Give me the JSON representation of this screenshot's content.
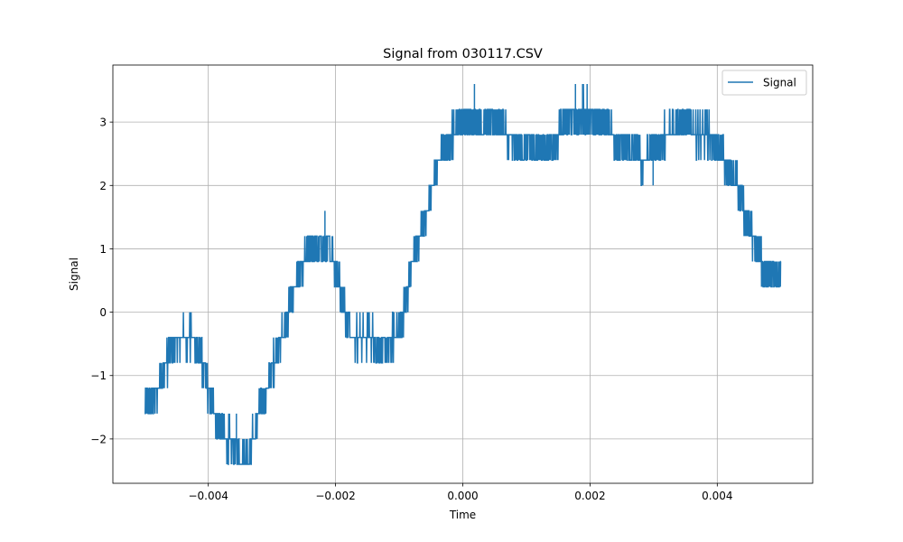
{
  "chart_data": {
    "type": "line",
    "title": "Signal from 030117.CSV",
    "xlabel": "Time",
    "ylabel": "Signal",
    "xlim": [
      -0.0055,
      0.0055
    ],
    "ylim": [
      -2.7,
      3.9
    ],
    "x_ticks": [
      -0.004,
      -0.002,
      0.0,
      0.002,
      0.004
    ],
    "x_tick_labels": [
      "−0.004",
      "−0.002",
      "0.000",
      "0.002",
      "0.004"
    ],
    "y_ticks": [
      -2,
      -1,
      0,
      1,
      2,
      3
    ],
    "y_tick_labels": [
      "−2",
      "−1",
      "0",
      "1",
      "2",
      "3"
    ],
    "grid": true,
    "legend_position": "top-right",
    "quantization_step": 0.4,
    "series": [
      {
        "name": "Signal",
        "color": "#1f77b4",
        "trend": [
          [
            -0.005,
            -1.5
          ],
          [
            -0.0049,
            -1.4
          ],
          [
            -0.0048,
            -1.2
          ],
          [
            -0.0047,
            -1.0
          ],
          [
            -0.0046,
            -0.6
          ],
          [
            -0.0045,
            -0.45
          ],
          [
            -0.0044,
            -0.4
          ],
          [
            -0.0043,
            -0.4
          ],
          [
            -0.0042,
            -0.5
          ],
          [
            -0.0041,
            -0.8
          ],
          [
            -0.004,
            -1.2
          ],
          [
            -0.0039,
            -1.6
          ],
          [
            -0.0038,
            -1.9
          ],
          [
            -0.0037,
            -2.0
          ],
          [
            -0.0036,
            -2.1
          ],
          [
            -0.0035,
            -2.3
          ],
          [
            -0.0034,
            -2.3
          ],
          [
            -0.0033,
            -2.0
          ],
          [
            -0.0032,
            -1.6
          ],
          [
            -0.0031,
            -1.3
          ],
          [
            -0.003,
            -0.9
          ],
          [
            -0.0029,
            -0.5
          ],
          [
            -0.0028,
            -0.3
          ],
          [
            -0.0027,
            0.2
          ],
          [
            -0.0026,
            0.5
          ],
          [
            -0.0025,
            0.8
          ],
          [
            -0.0024,
            1.0
          ],
          [
            -0.0023,
            1.0
          ],
          [
            -0.0022,
            1.0
          ],
          [
            -0.0021,
            1.0
          ],
          [
            -0.002,
            0.7
          ],
          [
            -0.0019,
            0.2
          ],
          [
            -0.0018,
            -0.2
          ],
          [
            -0.0017,
            -0.4
          ],
          [
            -0.0016,
            -0.4
          ],
          [
            -0.0015,
            -0.4
          ],
          [
            -0.0014,
            -0.4
          ],
          [
            -0.0013,
            -0.6
          ],
          [
            -0.0012,
            -0.6
          ],
          [
            -0.0011,
            -0.4
          ],
          [
            -0.001,
            -0.3
          ],
          [
            -0.0009,
            0.1
          ],
          [
            -0.0008,
            0.7
          ],
          [
            -0.0007,
            1.1
          ],
          [
            -0.0006,
            1.5
          ],
          [
            -0.0005,
            1.9
          ],
          [
            -0.0004,
            2.3
          ],
          [
            -0.0003,
            2.5
          ],
          [
            -0.0002,
            2.8
          ],
          [
            -0.0001,
            2.9
          ],
          [
            0.0,
            3.0
          ],
          [
            0.0001,
            3.0
          ],
          [
            0.0002,
            3.0
          ],
          [
            0.0003,
            3.0
          ],
          [
            0.0004,
            2.95
          ],
          [
            0.0005,
            3.0
          ],
          [
            0.0006,
            2.95
          ],
          [
            0.0007,
            2.8
          ],
          [
            0.0008,
            2.6
          ],
          [
            0.0009,
            2.6
          ],
          [
            0.001,
            2.6
          ],
          [
            0.0011,
            2.6
          ],
          [
            0.0012,
            2.6
          ],
          [
            0.0013,
            2.6
          ],
          [
            0.0014,
            2.7
          ],
          [
            0.0015,
            2.8
          ],
          [
            0.0016,
            3.0
          ],
          [
            0.0017,
            3.1
          ],
          [
            0.0018,
            3.1
          ],
          [
            0.0019,
            3.2
          ],
          [
            0.002,
            3.1
          ],
          [
            0.0021,
            3.0
          ],
          [
            0.0022,
            3.0
          ],
          [
            0.0023,
            2.9
          ],
          [
            0.0024,
            2.7
          ],
          [
            0.0025,
            2.6
          ],
          [
            0.0026,
            2.6
          ],
          [
            0.0027,
            2.5
          ],
          [
            0.0028,
            2.4
          ],
          [
            0.0029,
            2.5
          ],
          [
            0.003,
            2.6
          ],
          [
            0.0031,
            2.7
          ],
          [
            0.0032,
            2.8
          ],
          [
            0.0033,
            2.95
          ],
          [
            0.0034,
            3.0
          ],
          [
            0.0035,
            3.0
          ],
          [
            0.0036,
            2.9
          ],
          [
            0.0037,
            2.8
          ],
          [
            0.0038,
            2.8
          ],
          [
            0.0039,
            2.75
          ],
          [
            0.004,
            2.6
          ],
          [
            0.0041,
            2.4
          ],
          [
            0.0042,
            2.2
          ],
          [
            0.0043,
            2.0
          ],
          [
            0.0044,
            1.7
          ],
          [
            0.0045,
            1.4
          ],
          [
            0.0046,
            1.0
          ],
          [
            0.0047,
            0.8
          ],
          [
            0.0048,
            0.6
          ],
          [
            0.0049,
            0.55
          ],
          [
            0.005,
            0.5
          ]
        ],
        "spikes": [
          [
            -0.00217,
            1.6
          ],
          [
            -0.00356,
            -1.6
          ],
          [
            0.00018,
            3.6
          ],
          [
            0.00177,
            3.6
          ],
          [
            0.00188,
            3.6
          ],
          [
            0.00195,
            3.6
          ],
          [
            0.0022,
            3.0
          ],
          [
            0.00299,
            2.0
          ],
          [
            0.00431,
            2.4
          ]
        ]
      }
    ]
  }
}
